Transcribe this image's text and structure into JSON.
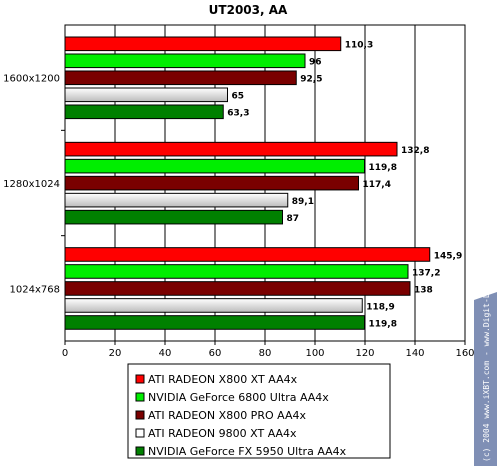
{
  "chart_data": {
    "type": "bar",
    "orientation": "horizontal",
    "title": "UT2003, AA",
    "categories": [
      "1600x1200",
      "1280x1024",
      "1024x768"
    ],
    "series": [
      {
        "name": "ATI RADEON X800 XT AA4x",
        "values": [
          110.3,
          132.8,
          145.9
        ],
        "labels": [
          "110,3",
          "132,8",
          "145,9"
        ],
        "color": "#ff0000"
      },
      {
        "name": "NVIDIA GeForce 6800 Ultra AA4x",
        "values": [
          96,
          119.8,
          137.2
        ],
        "labels": [
          "96",
          "119,8",
          "137,2"
        ],
        "color": "#00ee00"
      },
      {
        "name": "ATI RADEON X800 PRO AA4x",
        "values": [
          92.5,
          117.4,
          138
        ],
        "labels": [
          "92,5",
          "117,4",
          "138"
        ],
        "color": "#7a0000"
      },
      {
        "name": "ATI RADEON 9800 XT AA4x",
        "values": [
          65,
          89.1,
          118.9
        ],
        "labels": [
          "65",
          "89,1",
          "118,9"
        ],
        "color": "#e6e6e6"
      },
      {
        "name": "NVIDIA GeForce FX 5950 Ultra AA4x",
        "values": [
          63.3,
          87,
          119.8
        ],
        "labels": [
          "63,3",
          "87",
          "119,8"
        ],
        "color": "#008000"
      }
    ],
    "xlim": [
      0,
      160
    ],
    "xticks": [
      0,
      20,
      40,
      60,
      80,
      100,
      120,
      140,
      160
    ],
    "grid": true,
    "legend_position": "bottom"
  },
  "watermark": "(c) 2004 www.iXBT.com - www.Digit-Life.com"
}
